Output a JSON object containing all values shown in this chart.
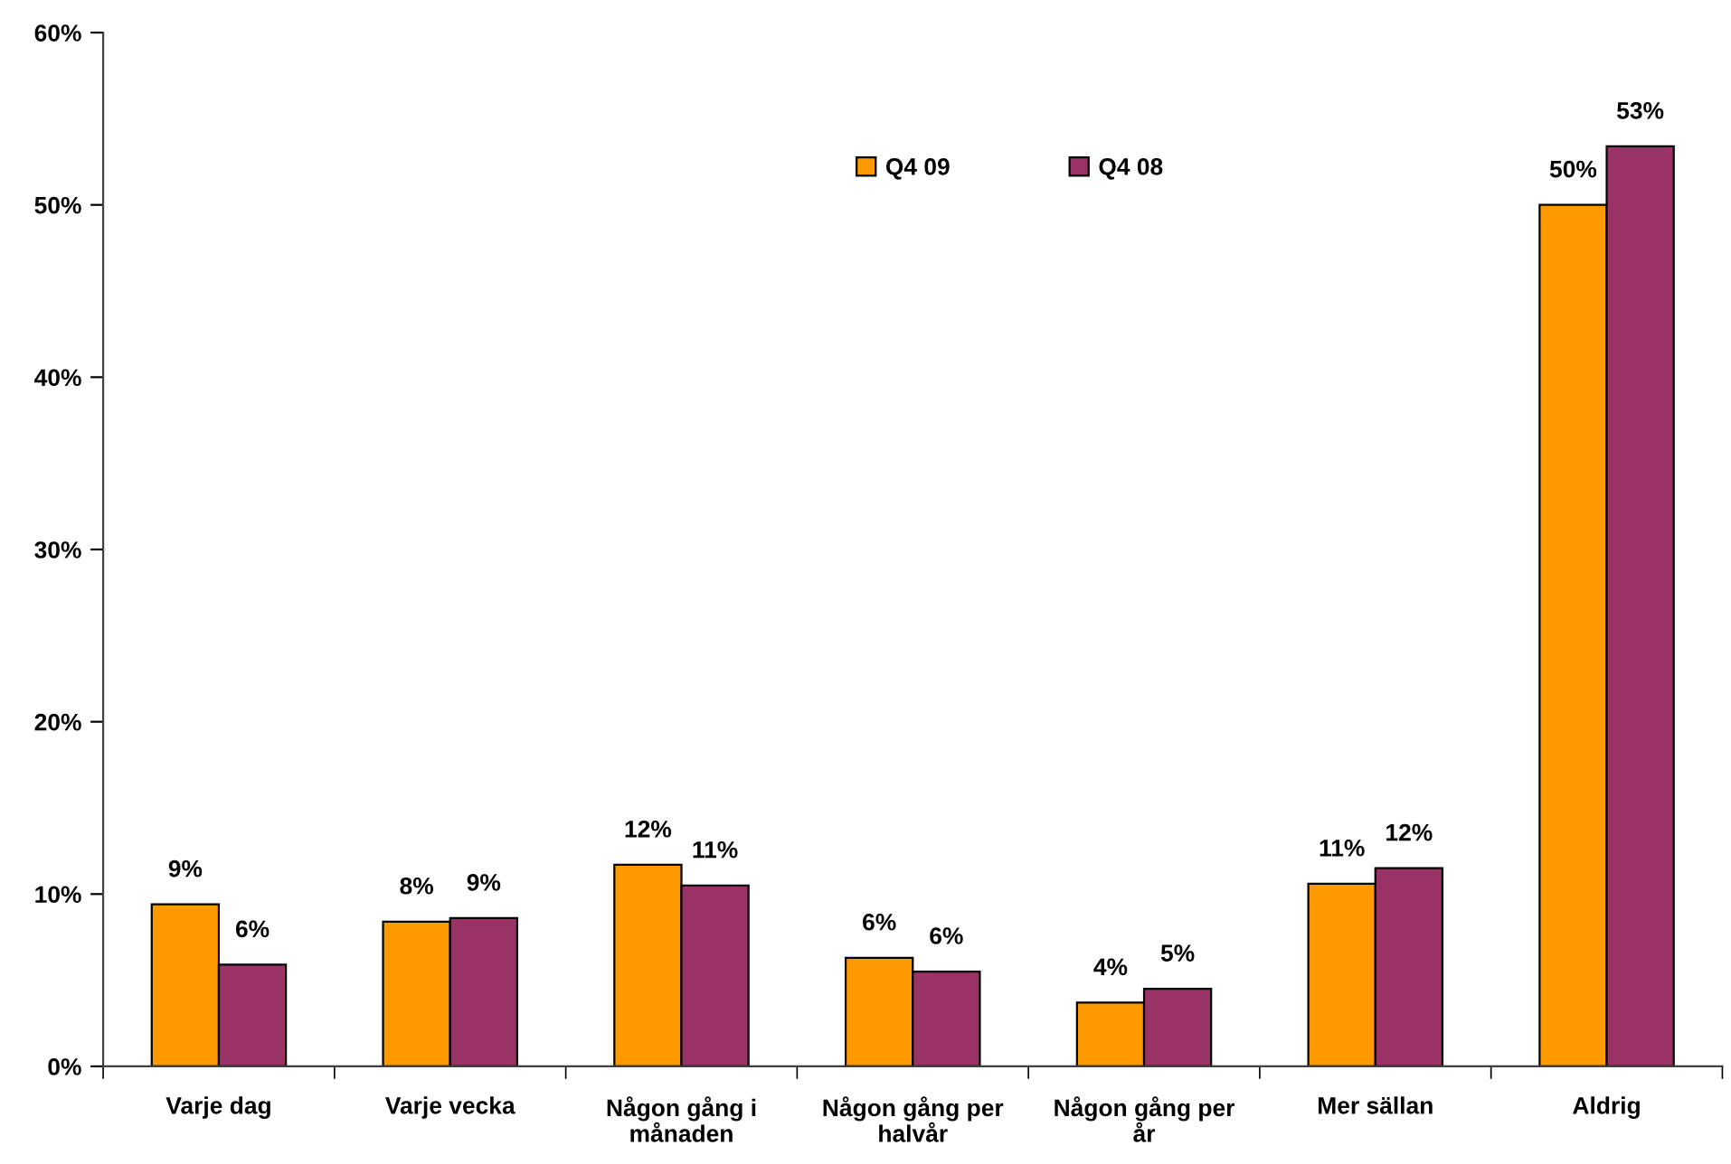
{
  "chart_data": {
    "type": "bar",
    "categories": [
      "Varje dag",
      "Varje vecka",
      "Någon gång i månaden",
      "Någon gång per halvår",
      "Någon gång per år",
      "Mer sällan",
      "Aldrig"
    ],
    "series": [
      {
        "name": "Q4 09",
        "color": "#ff9900",
        "values": [
          9.4,
          8.4,
          11.7,
          6.3,
          3.7,
          10.6,
          50.0
        ],
        "value_labels": [
          "9%",
          "8%",
          "12%",
          "6%",
          "4%",
          "11%",
          "50%"
        ]
      },
      {
        "name": "Q4 08",
        "color": "#993366",
        "values": [
          5.9,
          8.6,
          10.5,
          5.5,
          4.5,
          11.5,
          53.4
        ],
        "value_labels": [
          "6%",
          "9%",
          "11%",
          "6%",
          "5%",
          "12%",
          "53%"
        ]
      }
    ],
    "ylim": [
      0,
      60
    ],
    "yticks": [
      {
        "value": 0,
        "label": "0%"
      },
      {
        "value": 10,
        "label": "10%"
      },
      {
        "value": 20,
        "label": "20%"
      },
      {
        "value": 30,
        "label": "30%"
      },
      {
        "value": 40,
        "label": "40%"
      },
      {
        "value": 50,
        "label": "50%"
      },
      {
        "value": 60,
        "label": "60%"
      }
    ],
    "legend": "top"
  }
}
